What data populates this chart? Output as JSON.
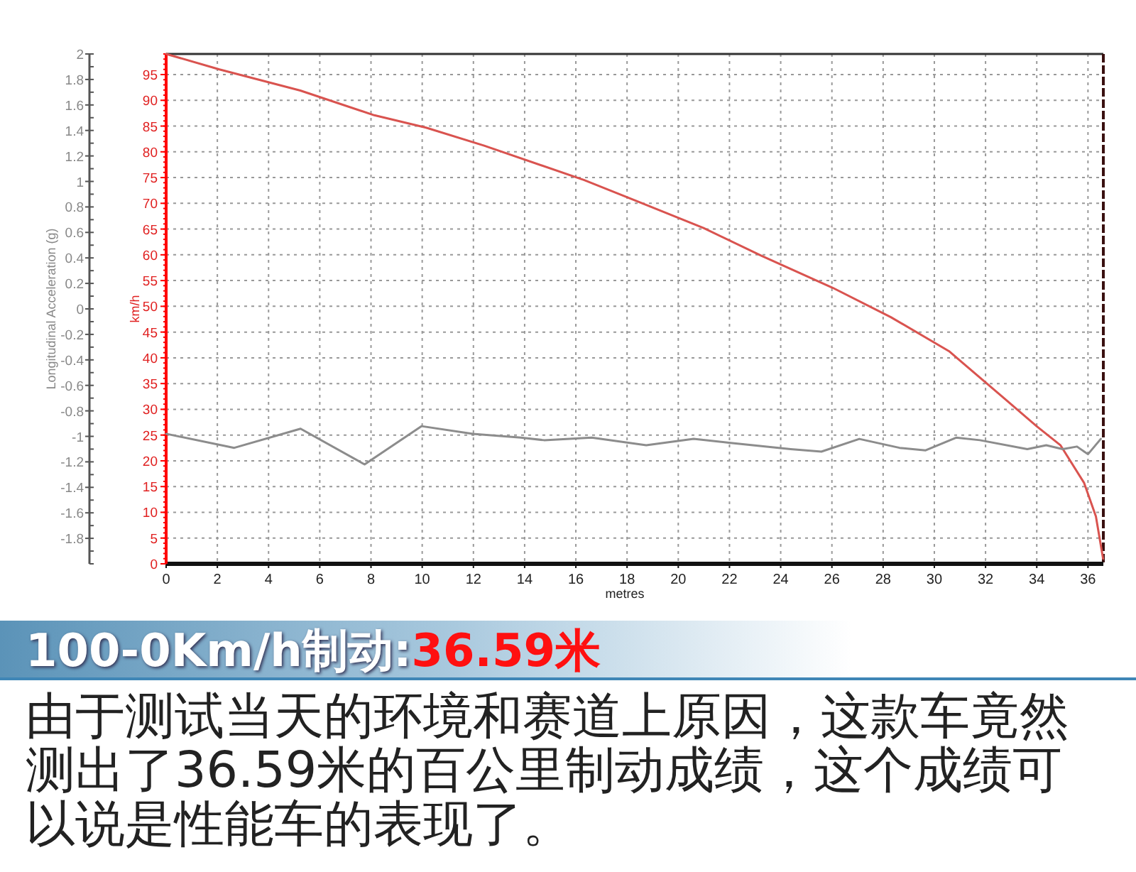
{
  "chart_data": {
    "type": "line",
    "title": "100-0Km/h制动:36.59米",
    "xlabel": "metres",
    "ylabel": "Longitudinal Acceleration (g)",
    "y2label": "km/h",
    "xlim": [
      0,
      36.6
    ],
    "xticks": [
      0,
      2,
      4,
      6,
      8,
      10,
      12,
      14,
      16,
      18,
      20,
      22,
      24,
      26,
      28,
      30,
      32,
      34,
      36
    ],
    "ylim": [
      -2,
      2
    ],
    "yticks": [
      2,
      1.8,
      1.6,
      1.4,
      1.2,
      1,
      0.8,
      0.6,
      0.4,
      0.2,
      0,
      -0.2,
      -0.4,
      -0.6,
      -0.8,
      -1,
      -1.2,
      -1.4,
      -1.6,
      -1.8
    ],
    "y2lim": [
      0,
      99
    ],
    "y2ticks": [
      0,
      5,
      10,
      15,
      20,
      25,
      30,
      35,
      40,
      45,
      50,
      55,
      60,
      65,
      70,
      75,
      80,
      85,
      90,
      95
    ],
    "grid": true,
    "line_style": "solid",
    "marker": "none",
    "series": [
      {
        "axis": "y2",
        "color": "#d9534f",
        "x": [
          0,
          2.08,
          5.24,
          8.13,
          10.15,
          12.42,
          16.33,
          18.34,
          20.99,
          23.26,
          26.03,
          28.3,
          30.57,
          32.71,
          34.0,
          34.93,
          35.85,
          36.31,
          36.59
        ],
        "values": [
          99,
          96,
          91.9,
          87.1,
          84.7,
          81.2,
          74.5,
          70.5,
          65.2,
          59.8,
          53.6,
          47.9,
          41.3,
          32.2,
          26.7,
          23,
          15.7,
          9.2,
          1
        ]
      },
      {
        "axis": "y",
        "color": "#8c8c8c",
        "x": [
          0,
          2.66,
          5.25,
          7.75,
          9.97,
          11.98,
          13.85,
          14.76,
          16.62,
          18.75,
          20.6,
          21.98,
          24.39,
          25.59,
          27.07,
          28.64,
          29.66,
          30.85,
          31.78,
          33.63,
          34.37,
          35.01,
          35.57,
          36.0,
          36.5
        ],
        "values": [
          -0.98,
          -1.09,
          -0.94,
          -1.22,
          -0.92,
          -0.98,
          -1.01,
          -1.03,
          -1.01,
          -1.07,
          -1.02,
          -1.05,
          -1.1,
          -1.12,
          -1.02,
          -1.09,
          -1.11,
          -1.01,
          -1.03,
          -1.1,
          -1.07,
          -1.1,
          -1.08,
          -1.14,
          -1.02
        ]
      }
    ],
    "annotations": [
      "由于测试当天的环境和赛道上原因，这款车竟然测出了36.59米的百公里制动成绩，这个成绩可以说是性能车的表现了。"
    ]
  }
}
